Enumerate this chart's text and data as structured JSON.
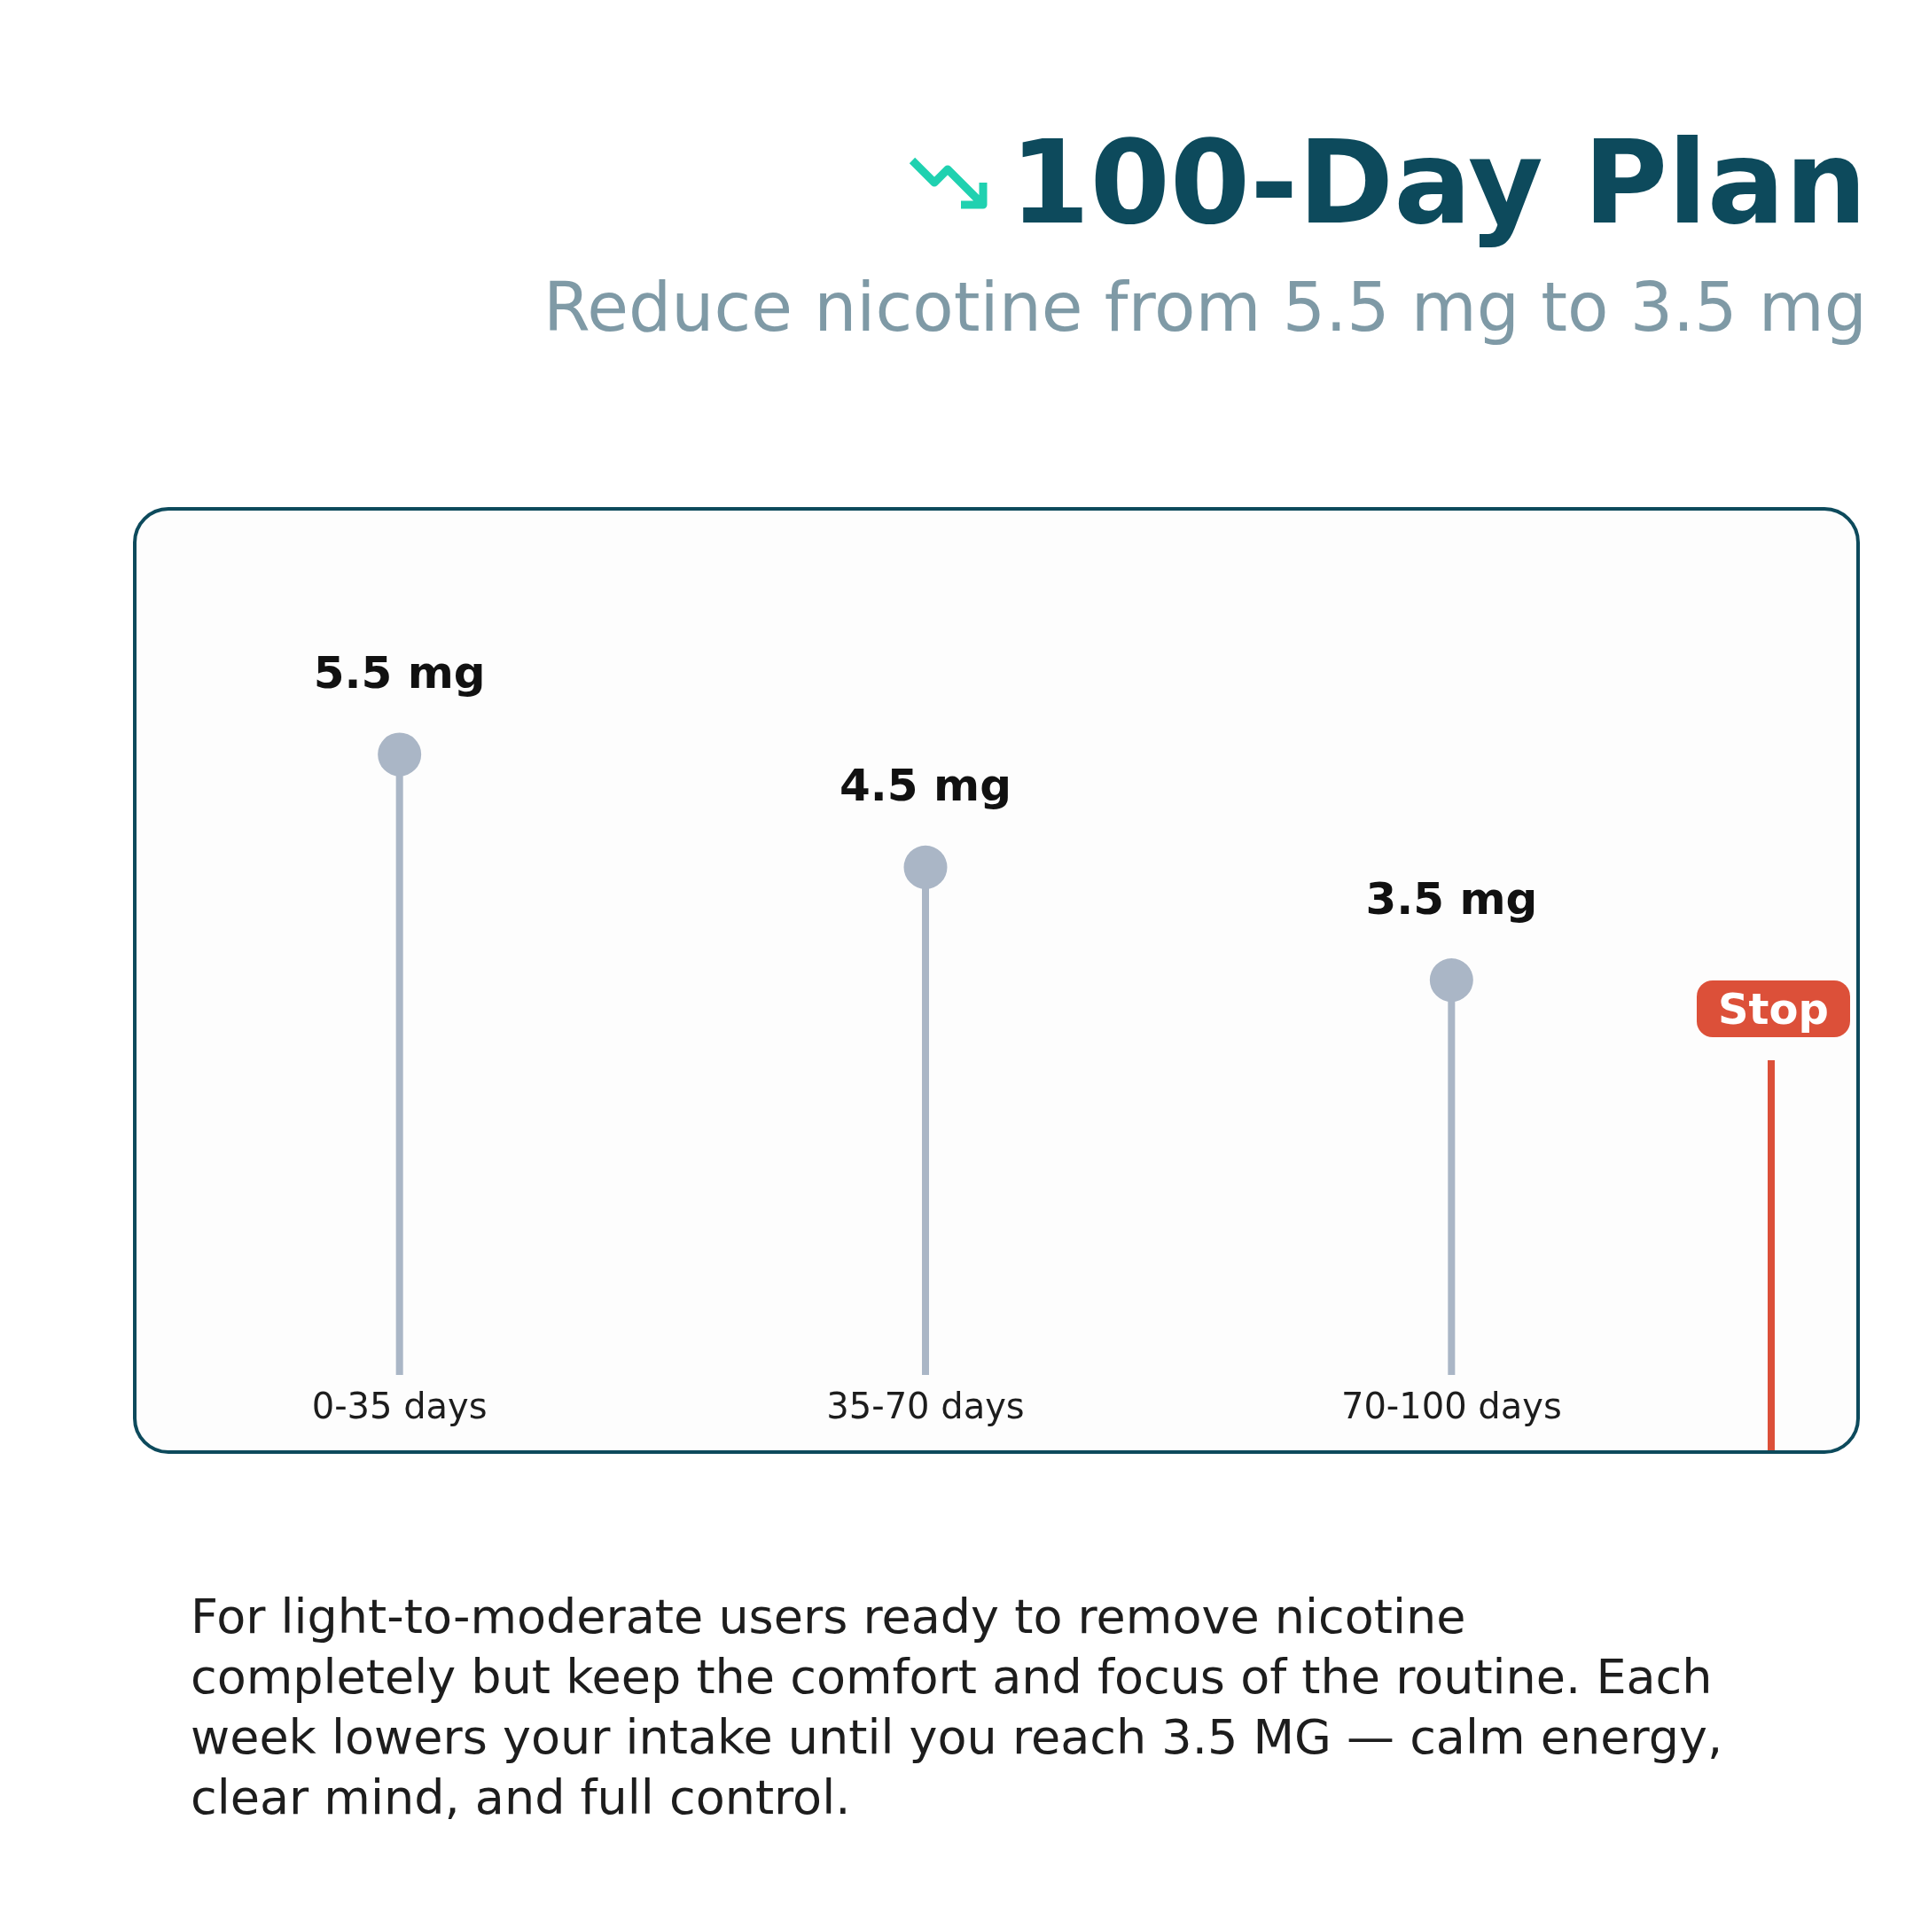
{
  "chart_data": {
    "type": "lollipop",
    "title": "100-Day Plan",
    "subtitle": "Reduce nicotine from 5.5 mg to 3.5 mg",
    "categories": [
      "0-35 days",
      "35-70 days",
      "70-100 days"
    ],
    "values": [
      5.5,
      4.5,
      3.5
    ],
    "value_labels": [
      "5.5 mg",
      "4.5 mg",
      "3.5 mg"
    ],
    "color": "#aab6c6",
    "annotations": [
      "Stop",
      "For light-to-moderate users ready to remove nicotine completely but keep the comfort and focus of the routine. Each week lowers your intake until you reach 3.5 MG — calm energy, clear mind, and full control."
    ]
  }
}
